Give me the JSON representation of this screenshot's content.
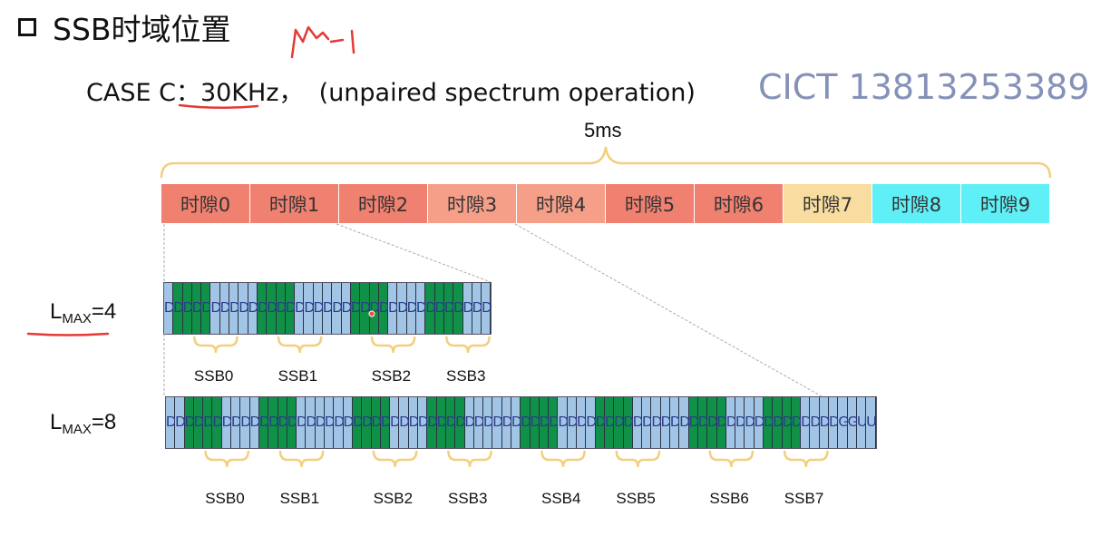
{
  "title": "SSB时域位置",
  "case_label": "CASE C：30KHz，  (unpaired spectrum operation)",
  "contact": "CICT 13813253389",
  "duration": "5ms",
  "slots": [
    {
      "label": "时隙0",
      "color": "#f08070"
    },
    {
      "label": "时隙1",
      "color": "#f08070"
    },
    {
      "label": "时隙2",
      "color": "#f08070"
    },
    {
      "label": "时隙3",
      "color": "#f59f88"
    },
    {
      "label": "时隙4",
      "color": "#f59f88"
    },
    {
      "label": "时隙5",
      "color": "#f08070"
    },
    {
      "label": "时隙6",
      "color": "#f08070"
    },
    {
      "label": "时隙7",
      "color": "#f8dca0"
    },
    {
      "label": "时隙8",
      "color": "#5ff0f7"
    },
    {
      "label": "时隙9",
      "color": "#5ff0f7"
    }
  ],
  "lmax4": {
    "label_main": "L",
    "label_sub": "MAX",
    "label_value": "=4",
    "symbols": "DDDDDDDDDDDDDDDDDDDDDDDDDDDDDDDDDDD",
    "green_groups": [
      [
        1,
        4
      ],
      [
        10,
        4
      ],
      [
        20,
        4
      ],
      [
        28,
        4
      ]
    ],
    "ssb_labels": [
      "SSB0",
      "SSB1",
      "SSB2",
      "SSB3"
    ]
  },
  "lmax8": {
    "label_main": "L",
    "label_sub": "MAX",
    "label_value": "=8",
    "symbols": "DDDDDDDDDDDDDDDDDDDDDDDDDDDDDDDDDDDDDDDDDDDDDDDDDDDDDDDDDDDDDDDDDDDDDDDDGGUU",
    "green_groups": [
      [
        2,
        4
      ],
      [
        10,
        4
      ],
      [
        20,
        4
      ],
      [
        28,
        4
      ],
      [
        38,
        4
      ],
      [
        46,
        4
      ],
      [
        56,
        4
      ],
      [
        64,
        4
      ]
    ],
    "ssb_labels": [
      "SSB0",
      "SSB1",
      "SSB2",
      "SSB3",
      "SSB4",
      "SSB5",
      "SSB6",
      "SSB7"
    ]
  },
  "colors": {
    "green": "#0f9147",
    "blue": "#a2c5e6",
    "annotation_red": "#e53935",
    "brace": "#f2cf7d"
  }
}
